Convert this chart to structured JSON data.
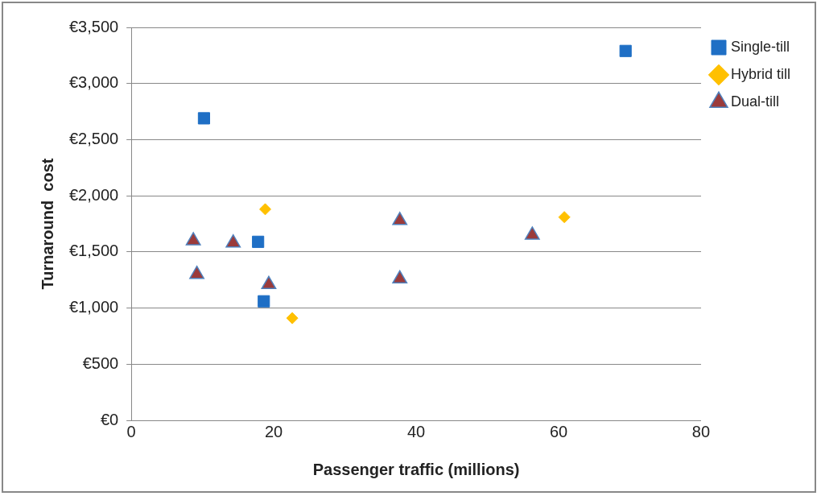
{
  "chart_data": {
    "type": "scatter",
    "xlabel": "Passenger traffic (millions)",
    "ylabel": "Turnaround  cost",
    "xlim": [
      0,
      80
    ],
    "xticks": [
      0,
      20,
      40,
      60,
      80
    ],
    "ylim": [
      0,
      3500
    ],
    "yticks": [
      {
        "value": 0,
        "label": "€0"
      },
      {
        "value": 500,
        "label": "€500"
      },
      {
        "value": 1000,
        "label": "€1,000"
      },
      {
        "value": 1500,
        "label": "€1,500"
      },
      {
        "value": 2000,
        "label": "€2,000"
      },
      {
        "value": 2500,
        "label": "€2,500"
      },
      {
        "value": 3000,
        "label": "€3,000"
      },
      {
        "value": 3500,
        "label": "€3,500"
      }
    ],
    "grid": "y",
    "legend": "right",
    "series": [
      {
        "name": "Single-till",
        "color": "#1f6fc5",
        "marker": "square",
        "x": [
          69.4,
          10.2,
          17.8,
          18.6
        ],
        "values": [
          3290,
          2690,
          1590,
          1060
        ]
      },
      {
        "name": "Hybrid till",
        "color": "#ffc000",
        "marker": "diamond",
        "x": [
          18.8,
          22.6,
          60.8
        ],
        "values": [
          1880,
          910,
          1810
        ]
      },
      {
        "name": "Dual-till",
        "color": "#9b3b3b",
        "marker": "triangle",
        "x": [
          8.7,
          9.2,
          14.3,
          19.3,
          37.7,
          37.7,
          56.3
        ],
        "values": [
          1600,
          1300,
          1580,
          1210,
          1780,
          1260,
          1650
        ]
      }
    ]
  }
}
